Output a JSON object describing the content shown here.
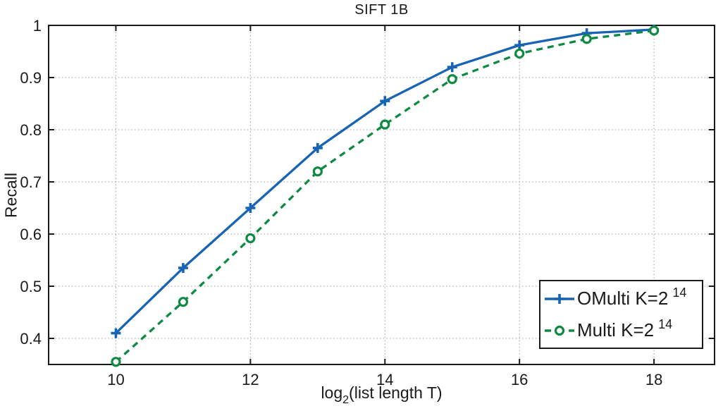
{
  "figure": {
    "title": "SIFT 1B",
    "ylabel": "Recall",
    "xlabel_pre": "log",
    "xlabel_sub": "2",
    "xlabel_post": "(list length T)"
  },
  "chart_data": {
    "type": "line",
    "title": "SIFT 1B",
    "xlabel": "log_2(list length T)",
    "ylabel": "Recall",
    "xlim": [
      9.0,
      18.9
    ],
    "ylim": [
      0.35,
      1.0
    ],
    "xticks": [
      10,
      12,
      14,
      16,
      18
    ],
    "x_tick_labels": [
      "10",
      "12",
      "14",
      "16",
      "18"
    ],
    "yticks": [
      0.4,
      0.5,
      0.6,
      0.7,
      0.8,
      0.9,
      1.0
    ],
    "y_tick_labels": [
      "0.4",
      "0.5",
      "0.6",
      "0.7",
      "0.8",
      "0.9",
      "1"
    ],
    "grid": true,
    "grid_style": "dotted",
    "legend_position": "lower right",
    "x": [
      10,
      11,
      12,
      13,
      14,
      15,
      16,
      17,
      18
    ],
    "series": [
      {
        "name": "OMulti K=2^14",
        "label_base": "OMulti K=2",
        "label_sup": "14",
        "color": "#1763b4",
        "linestyle": "solid",
        "marker": "plus",
        "values": [
          0.41,
          0.535,
          0.65,
          0.765,
          0.855,
          0.92,
          0.962,
          0.985,
          0.992
        ]
      },
      {
        "name": "Multi K=2^14",
        "label_base": "Multi K=2",
        "label_sup": "14",
        "color": "#0f8a43",
        "linestyle": "dashed",
        "marker": "circle",
        "values": [
          0.355,
          0.47,
          0.592,
          0.72,
          0.81,
          0.897,
          0.946,
          0.974,
          0.99
        ]
      }
    ],
    "colors": {
      "axis": "#1a1a1a",
      "grid": "#9a9a9a",
      "tick_text": "#1a1a1a",
      "background": "#ffffff"
    }
  }
}
